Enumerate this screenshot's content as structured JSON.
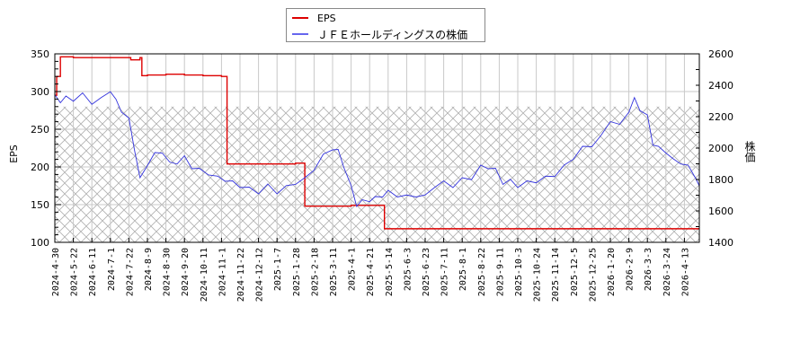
{
  "legend": {
    "items": [
      {
        "label": "EPS",
        "color": "#dd0000"
      },
      {
        "label": "ＪＦＥホールディングスの株価",
        "color": "#3333dd"
      }
    ]
  },
  "axes": {
    "left_title": "EPS",
    "right_title": "株価"
  },
  "chart_data": {
    "type": "line",
    "title": "",
    "xlabel": "",
    "ylabel": "EPS",
    "ylabel_right": "株価",
    "ylim": [
      100,
      350
    ],
    "ylim_right": [
      1400,
      2600
    ],
    "yticks_left": [
      100,
      150,
      200,
      250,
      300,
      350
    ],
    "yticks_right": [
      1400,
      1600,
      1800,
      2000,
      2200,
      2400,
      2600
    ],
    "grid": true,
    "legend_position": "top-center",
    "x_tick_labels": [
      "2024-4-30",
      "2024-5-22",
      "2024-6-11",
      "2024-7-1",
      "2024-7-22",
      "2024-8-9",
      "2024-8-30",
      "2024-9-20",
      "2024-10-11",
      "2024-11-1",
      "2024-11-22",
      "2024-12-12",
      "2025-1-7",
      "2025-1-28",
      "2025-2-18",
      "2025-3-11",
      "2025-4-1",
      "2025-4-21",
      "2025-5-14",
      "2025-6-3",
      "2025-6-23",
      "2025-7-11",
      "2025-8-1",
      "2025-8-22",
      "2025-9-11",
      "2025-10-3",
      "2025-10-24",
      "2025-11-14",
      "2025-12-5",
      "2025-12-25",
      "2026-1-20",
      "2026-2-9",
      "2026-3-3",
      "2026-3-24",
      "2026-4-13"
    ],
    "series": [
      {
        "name": "EPS",
        "axis": "left",
        "color": "#dd0000",
        "x_index": [
          0,
          0.1,
          0.3,
          1,
          2,
          3,
          4,
          4.1,
          4.6,
          4.7,
          5,
          6,
          7,
          8,
          9,
          9.2,
          9.3,
          10,
          11,
          12,
          13,
          13.4,
          13.5,
          14,
          15,
          16,
          17,
          17.7,
          17.8,
          19,
          22,
          25,
          28,
          31,
          34,
          34.9
        ],
        "values": [
          295,
          320,
          346,
          345,
          345,
          345,
          345,
          342,
          345,
          321,
          322,
          323,
          322,
          321,
          320,
          320,
          204,
          204,
          204,
          204,
          205,
          205,
          148,
          148,
          148,
          149,
          149,
          149,
          118,
          118,
          118,
          118,
          118,
          118,
          118,
          118
        ]
      },
      {
        "name": "ＪＦＥホールディングスの株価",
        "axis": "right",
        "color": "#3333dd",
        "x_index": [
          0,
          0.3,
          0.6,
          1,
          1.5,
          2,
          2.5,
          3,
          3.3,
          3.6,
          4,
          4.3,
          4.6,
          5,
          5.4,
          5.8,
          6.2,
          6.6,
          7,
          7.4,
          7.8,
          8.3,
          8.8,
          9.2,
          9.6,
          10,
          10.5,
          11,
          11.5,
          12,
          12.5,
          13,
          13.5,
          14,
          14.5,
          15,
          15.3,
          15.6,
          16,
          16.3,
          16.6,
          17,
          17.3,
          17.7,
          18,
          18.5,
          19,
          19.5,
          20,
          20.5,
          21,
          21.5,
          22,
          22.5,
          23,
          23.4,
          23.8,
          24.2,
          24.6,
          25,
          25.5,
          26,
          26.5,
          27,
          27.5,
          28,
          28.5,
          29,
          29.5,
          30,
          30.5,
          31,
          31.3,
          31.6,
          32,
          32.3,
          32.6,
          33,
          33.4,
          33.8,
          34.2,
          34.6,
          34.9
        ],
        "values": [
          2340,
          2300,
          2320,
          2310,
          2340,
          2290,
          2310,
          2370,
          2300,
          2240,
          2180,
          2000,
          1800,
          1900,
          1960,
          1980,
          1900,
          1910,
          1940,
          1880,
          1860,
          1840,
          1810,
          1800,
          1780,
          1760,
          1740,
          1720,
          1760,
          1720,
          1750,
          1780,
          1800,
          1870,
          1950,
          2000,
          1980,
          1890,
          1750,
          1640,
          1660,
          1670,
          1680,
          1700,
          1720,
          1700,
          1690,
          1700,
          1690,
          1760,
          1780,
          1760,
          1800,
          1810,
          1880,
          1880,
          1860,
          1780,
          1790,
          1760,
          1780,
          1790,
          1810,
          1830,
          1880,
          1940,
          2000,
          2020,
          2070,
          2180,
          2140,
          2240,
          2310,
          2250,
          2200,
          2030,
          2000,
          1980,
          1920,
          1910,
          1880,
          1820,
          1760
        ]
      }
    ],
    "hatched_region": {
      "from_eps": 100,
      "to_eps": 280,
      "from_price": 1400,
      "to_price": 2260
    }
  }
}
